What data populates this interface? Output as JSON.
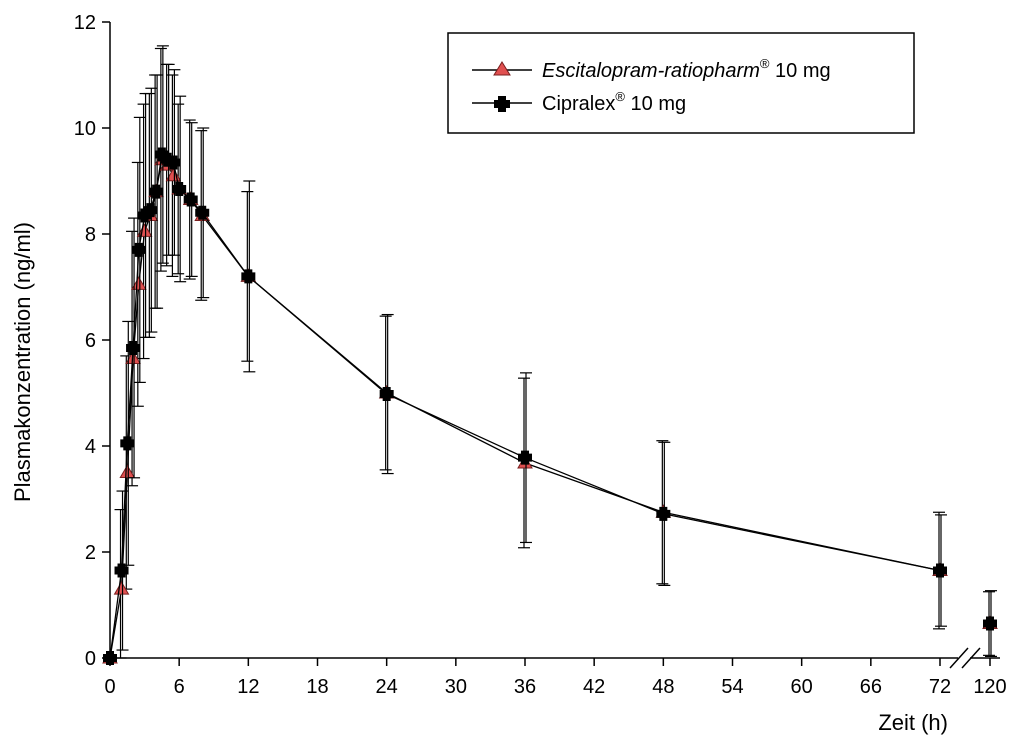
{
  "chart_data": {
    "type": "line",
    "xlabel": "Zeit (h)",
    "ylabel": "Plasmakonzentration (ng/ml)",
    "xlim": [
      0,
      72
    ],
    "ylim": [
      0,
      12
    ],
    "x_ticks": [
      0,
      6,
      12,
      18,
      24,
      30,
      36,
      42,
      48,
      54,
      60,
      66,
      72
    ],
    "x_tick_labels": [
      "0",
      "6",
      "12",
      "18",
      "24",
      "30",
      "36",
      "42",
      "48",
      "54",
      "60",
      "66",
      "72"
    ],
    "x_break_label": "120",
    "y_ticks": [
      0,
      2,
      4,
      6,
      8,
      10,
      12
    ],
    "y_tick_labels": [
      "0",
      "2",
      "4",
      "6",
      "8",
      "10",
      "12"
    ],
    "legend_position": "top-right",
    "series": [
      {
        "name": "Escitalopram-ratiopharm",
        "name_style": "italic",
        "name_sup": "®",
        "name_suffix": " 10 mg",
        "marker": "triangle",
        "color": "#e05050",
        "x": [
          0,
          1,
          1.5,
          2,
          2.5,
          3,
          3.5,
          4,
          4.5,
          5,
          5.5,
          6,
          7,
          8,
          12,
          24,
          36,
          48,
          72,
          120
        ],
        "y": [
          0,
          1.3,
          3.5,
          5.65,
          7.05,
          8.05,
          8.35,
          8.8,
          9.4,
          9.3,
          9.1,
          8.85,
          8.65,
          8.35,
          7.2,
          5.0,
          3.68,
          2.75,
          1.65,
          0.65
        ],
        "err": [
          0,
          1.5,
          2.2,
          2.4,
          2.3,
          2.4,
          2.3,
          2.2,
          2.1,
          1.9,
          1.9,
          1.6,
          1.5,
          1.6,
          1.6,
          1.45,
          1.6,
          1.35,
          1.1,
          0.6
        ]
      },
      {
        "name": "Cipralex",
        "name_style": "normal",
        "name_sup": "®",
        "name_suffix": " 10 mg",
        "marker": "cross",
        "color": "#000000",
        "x": [
          0,
          1,
          1.5,
          2,
          2.5,
          3,
          3.5,
          4,
          4.5,
          5,
          5.5,
          6,
          7,
          8,
          12,
          24,
          36,
          48,
          72,
          120
        ],
        "y": [
          0,
          1.65,
          4.05,
          5.85,
          7.7,
          8.35,
          8.45,
          8.8,
          9.5,
          9.4,
          9.35,
          8.85,
          8.65,
          8.4,
          7.2,
          4.98,
          3.78,
          2.72,
          1.65,
          0.65
        ],
        "err": [
          0,
          1.5,
          2.3,
          2.45,
          2.5,
          2.3,
          2.3,
          2.2,
          2.05,
          1.8,
          1.75,
          1.75,
          1.45,
          1.6,
          1.8,
          1.5,
          1.6,
          1.35,
          1.05,
          0.62
        ]
      }
    ]
  }
}
